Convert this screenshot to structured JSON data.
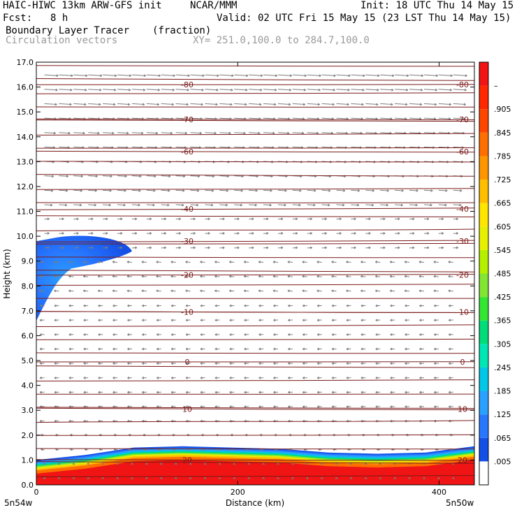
{
  "header": {
    "model": "HAIC-HIWC 13km ARW-GFS init",
    "org": "NCAR/MMM",
    "init": "Init: 18 UTC Thu 14 May 15",
    "fcst_label": "Fcst:",
    "fcst_value": "8 h",
    "valid": "Valid: 02 UTC Fri 15 May 15 (23 LST Thu 14 May 15)",
    "field": "Boundary Layer Tracer",
    "units": "(fraction)",
    "vectors": "Circulation vectors",
    "xy": "XY= 251.0,100.0 to 284.7,100.0"
  },
  "chart_data": {
    "type": "heatmap",
    "xlabel": "Distance (km)",
    "ylabel": "Height (km)",
    "xlim": [
      0,
      435
    ],
    "ylim": [
      0,
      17
    ],
    "x_ticks": [
      "0",
      "200",
      "400"
    ],
    "x_tick_values": [
      0,
      200,
      400
    ],
    "y_ticks": [
      "0.0",
      "1.0",
      "2.0",
      "3.0",
      "4.0",
      "5.0",
      "6.0",
      "7.0",
      "8.0",
      "9.0",
      "10.0",
      "11.0",
      "12.0",
      "13.0",
      "14.0",
      "15.0",
      "16.0",
      "17.0"
    ],
    "y_tick_values": [
      0,
      1,
      2,
      3,
      4,
      5,
      6,
      7,
      8,
      9,
      10,
      11,
      12,
      13,
      14,
      15,
      16,
      17
    ],
    "x_left_label": "5n54w",
    "x_right_label": "5n50w",
    "colorbar": {
      "labels": [
        ".005",
        ".065",
        ".125",
        ".185",
        ".245",
        ".305",
        ".365",
        ".425",
        ".485",
        ".545",
        ".605",
        ".665",
        ".725",
        ".785",
        ".845",
        ".905",
        "–"
      ],
      "colors": [
        "#ffffff",
        "#1450e6",
        "#2878ff",
        "#2aa0ff",
        "#00c8e6",
        "#00e6b4",
        "#00dc78",
        "#32e632",
        "#82e632",
        "#b4f000",
        "#e6f000",
        "#ffe600",
        "#ffbe00",
        "#ff9600",
        "#ff6e00",
        "#ff4600",
        "#ff2800",
        "#f01414"
      ]
    },
    "temperature_contours": [
      {
        "label": "20",
        "height_km": 1.0
      },
      {
        "label": "10",
        "height_km": 3.05
      },
      {
        "label": "0",
        "height_km": 4.95
      },
      {
        "label": "-10",
        "height_km": 6.95
      },
      {
        "label": "-20",
        "height_km": 8.45
      },
      {
        "label": "-30",
        "height_km": 9.8
      },
      {
        "label": "-40",
        "height_km": 11.1
      },
      {
        "label": "-60",
        "height_km": 13.4
      },
      {
        "label": "-70",
        "height_km": 14.7
      },
      {
        "label": "-80",
        "height_km": 16.1
      }
    ],
    "tracer_regions": [
      {
        "description": "boundary layer",
        "top_km": [
          1.0,
          1.2,
          1.5,
          1.55,
          1.5,
          1.45,
          1.3,
          1.25,
          1.3,
          1.55
        ]
      },
      {
        "description": "elevated plume",
        "x_range_km": [
          0,
          95
        ],
        "z_range_km": [
          6.6,
          10.1
        ]
      }
    ]
  }
}
